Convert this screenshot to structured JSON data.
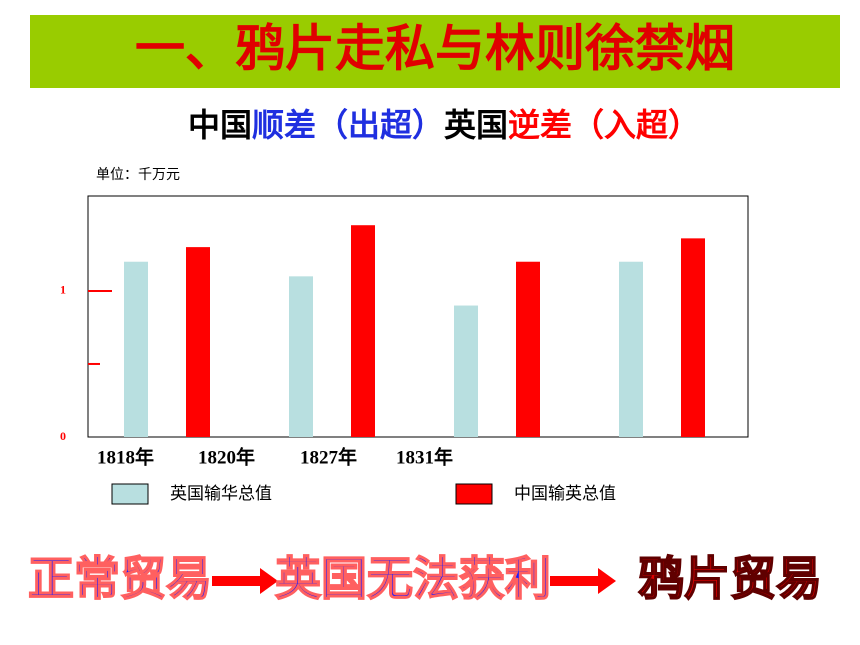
{
  "header": {
    "title": "一、鸦片走私与林则徐禁烟",
    "subtitle": [
      {
        "text": "中国",
        "color": "#000000"
      },
      {
        "text": "顺差（出超）",
        "color": "#1f2fe0"
      },
      {
        "text": "英国",
        "color": "#000000"
      },
      {
        "text": "逆差（入超）",
        "color": "#ff0000"
      }
    ]
  },
  "chart_data": {
    "type": "bar",
    "unit": "单位：千万元",
    "categories": [
      "1818年",
      "1820年",
      "1827年",
      "1831年"
    ],
    "series": [
      {
        "name": "英国输华总值",
        "color": "#b8dfe0",
        "values": [
          1.2,
          1.1,
          0.9,
          1.2
        ]
      },
      {
        "name": "中国输英总值",
        "color": "#ff0000",
        "values": [
          1.3,
          1.45,
          1.2,
          1.36
        ]
      }
    ],
    "ylim": [
      0,
      1.65
    ],
    "yticks": [
      0,
      1
    ],
    "yminorticks": [
      0.5
    ],
    "tick_color": "#ff0000"
  },
  "flow": {
    "steps": [
      {
        "text": "正常贸易",
        "color": "#1a1aff"
      },
      {
        "text": "英国无法获利",
        "color": "#1a1aff"
      },
      {
        "text": "鸦片贸易",
        "color": "#e00000"
      }
    ]
  }
}
